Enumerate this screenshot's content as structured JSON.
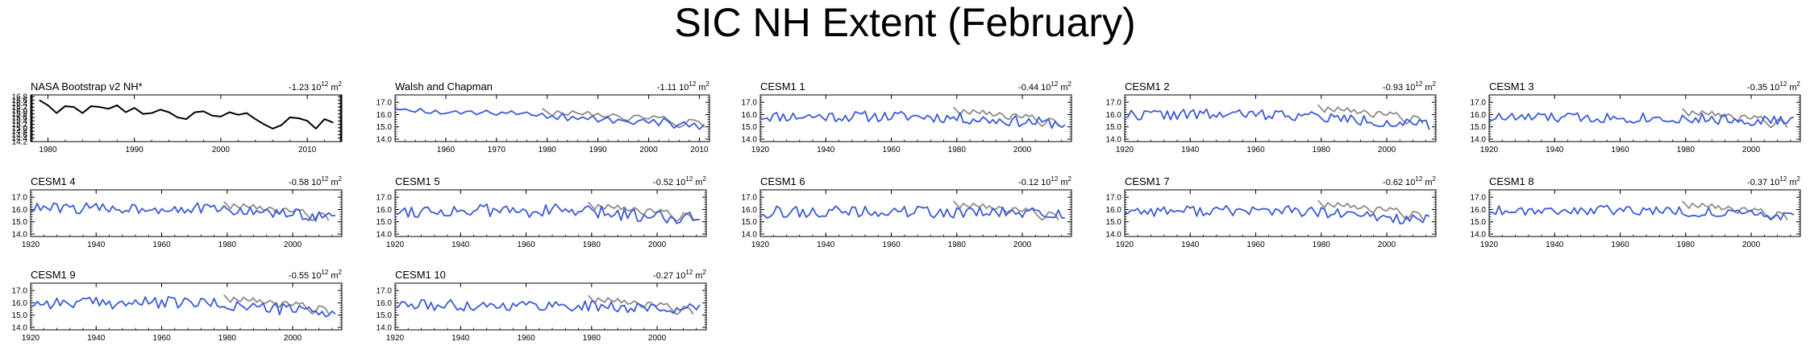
{
  "title": "SIC NH Extent (February)",
  "colors": {
    "axis": "#000000",
    "model": "#3b5bd6",
    "obs": "#8c8c8c",
    "nasa": "#000000"
  },
  "chart_data": [
    {
      "type": "line",
      "title": "NASA Bootstrap v2 NH*",
      "trend_value": "-1.23",
      "trend_units": "10",
      "trend_exp": "12",
      "trend_m": "m",
      "trend_sup": "2",
      "xlim": [
        1978,
        2014
      ],
      "ylim": [
        14.2,
        16.9
      ],
      "xticks": [
        1980,
        1990,
        2000,
        2010
      ],
      "yticks": [
        14.2,
        14.4,
        14.6,
        14.8,
        15.0,
        15.2,
        15.4,
        15.6,
        15.8,
        16.0,
        16.2,
        16.4,
        16.6,
        16.8
      ],
      "ytick_labels": [
        "14.2",
        "14.4",
        "14.6",
        "14.8",
        "15.0",
        "15.2",
        "15.4",
        "15.6",
        "15.8",
        "16.0",
        "16.2",
        "16.4",
        "16.6",
        "16.8"
      ],
      "series": [
        {
          "color": "#000000",
          "x_start": 1979,
          "values": [
            16.6,
            16.3,
            15.85,
            16.25,
            16.2,
            15.85,
            16.25,
            16.2,
            16.1,
            16.3,
            15.9,
            16.15,
            15.8,
            15.85,
            16.05,
            15.9,
            15.6,
            15.5,
            15.9,
            15.95,
            15.7,
            15.65,
            15.9,
            15.75,
            15.85,
            15.5,
            15.2,
            14.95,
            15.15,
            15.6,
            15.55,
            15.4,
            14.95,
            15.5,
            15.3
          ]
        }
      ]
    },
    {
      "type": "line",
      "title": "Walsh and Chapman",
      "trend_value": "-1.11",
      "trend_units": "10",
      "trend_exp": "12",
      "trend_m": "m",
      "trend_sup": "2",
      "xlim": [
        1950,
        2012
      ],
      "ylim": [
        13.8,
        17.6
      ],
      "xticks": [
        1960,
        1970,
        1980,
        1990,
        2000,
        2010
      ],
      "yticks": [
        14.0,
        15.0,
        16.0,
        17.0
      ],
      "ytick_labels": [
        "14.0",
        "15.0",
        "16.0",
        "17.0"
      ],
      "series": [
        {
          "color": "#3b5bd6",
          "x_start": 1950,
          "values": [
            16.45,
            16.4,
            16.45,
            16.3,
            16.2,
            16.5,
            16.15,
            16.1,
            16.35,
            16.05,
            16.1,
            16.2,
            16.3,
            16.05,
            16.25,
            16.3,
            16.0,
            16.15,
            16.35,
            16.1,
            15.95,
            16.2,
            16.1,
            16.3,
            16.0,
            16.1,
            16.2,
            15.95,
            15.9,
            16.1,
            15.7,
            15.9,
            15.6,
            16.1,
            15.5,
            15.85,
            15.6,
            15.8,
            15.6,
            15.9,
            15.4,
            15.6,
            15.8,
            15.3,
            15.6,
            15.5,
            15.4,
            15.2,
            15.5,
            15.6,
            15.3,
            15.6,
            15.1,
            15.7,
            15.4,
            14.9,
            15.2,
            15.4,
            15.0,
            15.3,
            14.8,
            15.2
          ]
        },
        {
          "color": "#8c8c8c",
          "x_start": 1979,
          "values": [
            16.5,
            16.2,
            15.9,
            16.3,
            16.1,
            15.95,
            16.3,
            16.1,
            16.0,
            16.25,
            15.9,
            16.1,
            15.8,
            15.85,
            16.05,
            15.9,
            15.6,
            15.5,
            15.9,
            15.95,
            15.7,
            15.65,
            15.9,
            15.75,
            15.85,
            15.5,
            15.2,
            14.95,
            15.15,
            15.6,
            15.55,
            15.4,
            14.95
          ]
        }
      ]
    },
    {
      "type": "line",
      "title": "CESM1 1",
      "trend_value": "-0.44",
      "trend_units": "10",
      "trend_exp": "12",
      "trend_m": "m",
      "trend_sup": "2",
      "xlim": [
        1920,
        2015
      ],
      "ylim": [
        13.8,
        17.6
      ],
      "xticks": [
        1920,
        1940,
        1960,
        1980,
        2000
      ],
      "yticks": [
        14.0,
        15.0,
        16.0,
        17.0
      ],
      "ytick_labels": [
        "14.0",
        "15.0",
        "16.0",
        "17.0"
      ],
      "model_seed": 11,
      "model_base": 15.85,
      "model_amp": 0.45,
      "model_trend": -0.6,
      "obs_shift": 0.1,
      "series": []
    },
    {
      "type": "line",
      "title": "CESM1 2",
      "trend_value": "-0.93",
      "trend_units": "10",
      "trend_exp": "12",
      "trend_m": "m",
      "trend_sup": "2",
      "xlim": [
        1920,
        2015
      ],
      "ylim": [
        13.8,
        17.6
      ],
      "xticks": [
        1920,
        1940,
        1960,
        1980,
        2000
      ],
      "yticks": [
        14.0,
        15.0,
        16.0,
        17.0
      ],
      "ytick_labels": [
        "14.0",
        "15.0",
        "16.0",
        "17.0"
      ],
      "model_seed": 22,
      "model_base": 16.0,
      "model_amp": 0.45,
      "model_trend": -0.9,
      "obs_shift": 0.3,
      "series": []
    },
    {
      "type": "line",
      "title": "CESM1 3",
      "trend_value": "-0.35",
      "trend_units": "10",
      "trend_exp": "12",
      "trend_m": "m",
      "trend_sup": "2",
      "xlim": [
        1920,
        2015
      ],
      "ylim": [
        13.8,
        17.6
      ],
      "xticks": [
        1920,
        1940,
        1960,
        1980,
        2000
      ],
      "yticks": [
        14.0,
        15.0,
        16.0,
        17.0
      ],
      "ytick_labels": [
        "14.0",
        "15.0",
        "16.0",
        "17.0"
      ],
      "model_seed": 33,
      "model_base": 15.75,
      "model_amp": 0.45,
      "model_trend": -0.3,
      "obs_shift": 0.0,
      "series": []
    },
    {
      "type": "line",
      "title": "CESM1 4",
      "trend_value": "-0.58",
      "trend_units": "10",
      "trend_exp": "12",
      "trend_m": "m",
      "trend_sup": "2",
      "xlim": [
        1920,
        2015
      ],
      "ylim": [
        13.8,
        17.6
      ],
      "xticks": [
        1920,
        1940,
        1960,
        1980,
        2000
      ],
      "yticks": [
        14.0,
        15.0,
        16.0,
        17.0
      ],
      "ytick_labels": [
        "14.0",
        "15.0",
        "16.0",
        "17.0"
      ],
      "model_seed": 44,
      "model_base": 16.1,
      "model_amp": 0.45,
      "model_trend": -0.7,
      "obs_shift": 0.15,
      "series": []
    },
    {
      "type": "line",
      "title": "CESM1 5",
      "trend_value": "-0.52",
      "trend_units": "10",
      "trend_exp": "12",
      "trend_m": "m",
      "trend_sup": "2",
      "xlim": [
        1920,
        2015
      ],
      "ylim": [
        13.8,
        17.6
      ],
      "xticks": [
        1920,
        1940,
        1960,
        1980,
        2000
      ],
      "yticks": [
        14.0,
        15.0,
        16.0,
        17.0
      ],
      "ytick_labels": [
        "14.0",
        "15.0",
        "16.0",
        "17.0"
      ],
      "model_seed": 55,
      "model_base": 15.9,
      "model_amp": 0.55,
      "model_trend": -0.6,
      "obs_shift": 0.1,
      "series": []
    },
    {
      "type": "line",
      "title": "CESM1 6",
      "trend_value": "-0.12",
      "trend_units": "10",
      "trend_exp": "12",
      "trend_m": "m",
      "trend_sup": "2",
      "xlim": [
        1920,
        2015
      ],
      "ylim": [
        13.8,
        17.6
      ],
      "xticks": [
        1920,
        1940,
        1960,
        1980,
        2000
      ],
      "yticks": [
        14.0,
        15.0,
        16.0,
        17.0
      ],
      "ytick_labels": [
        "14.0",
        "15.0",
        "16.0",
        "17.0"
      ],
      "model_seed": 66,
      "model_base": 15.8,
      "model_amp": 0.5,
      "model_trend": -0.15,
      "obs_shift": 0.2,
      "series": []
    },
    {
      "type": "line",
      "title": "CESM1 7",
      "trend_value": "-0.62",
      "trend_units": "10",
      "trend_exp": "12",
      "trend_m": "m",
      "trend_sup": "2",
      "xlim": [
        1920,
        2015
      ],
      "ylim": [
        13.8,
        17.6
      ],
      "xticks": [
        1920,
        1940,
        1960,
        1980,
        2000
      ],
      "yticks": [
        14.0,
        15.0,
        16.0,
        17.0
      ],
      "ytick_labels": [
        "14.0",
        "15.0",
        "16.0",
        "17.0"
      ],
      "model_seed": 77,
      "model_base": 15.9,
      "model_amp": 0.45,
      "model_trend": -0.8,
      "obs_shift": 0.25,
      "series": []
    },
    {
      "type": "line",
      "title": "CESM1 8",
      "trend_value": "-0.37",
      "trend_units": "10",
      "trend_exp": "12",
      "trend_m": "m",
      "trend_sup": "2",
      "xlim": [
        1920,
        2015
      ],
      "ylim": [
        13.8,
        17.6
      ],
      "xticks": [
        1920,
        1940,
        1960,
        1980,
        2000
      ],
      "yticks": [
        14.0,
        15.0,
        16.0,
        17.0
      ],
      "ytick_labels": [
        "14.0",
        "15.0",
        "16.0",
        "17.0"
      ],
      "model_seed": 88,
      "model_base": 15.95,
      "model_amp": 0.4,
      "model_trend": -0.5,
      "obs_shift": 0.2,
      "series": []
    },
    {
      "type": "line",
      "title": "CESM1 9",
      "trend_value": "-0.55",
      "trend_units": "10",
      "trend_exp": "12",
      "trend_m": "m",
      "trend_sup": "2",
      "xlim": [
        1920,
        2015
      ],
      "ylim": [
        13.8,
        17.6
      ],
      "xticks": [
        1920,
        1940,
        1960,
        1980,
        2000
      ],
      "yticks": [
        14.0,
        15.0,
        16.0,
        17.0
      ],
      "ytick_labels": [
        "14.0",
        "15.0",
        "16.0",
        "17.0"
      ],
      "model_seed": 99,
      "model_base": 16.0,
      "model_amp": 0.5,
      "model_trend": -0.8,
      "obs_shift": 0.15,
      "series": []
    },
    {
      "type": "line",
      "title": "CESM1 10",
      "trend_value": "-0.27",
      "trend_units": "10",
      "trend_exp": "12",
      "trend_m": "m",
      "trend_sup": "2",
      "xlim": [
        1920,
        2015
      ],
      "ylim": [
        13.8,
        17.6
      ],
      "xticks": [
        1920,
        1940,
        1960,
        1980,
        2000
      ],
      "yticks": [
        14.0,
        15.0,
        16.0,
        17.0
      ],
      "ytick_labels": [
        "14.0",
        "15.0",
        "16.0",
        "17.0"
      ],
      "model_seed": 111,
      "model_base": 15.8,
      "model_amp": 0.45,
      "model_trend": -0.35,
      "obs_shift": 0.1,
      "series": []
    }
  ]
}
